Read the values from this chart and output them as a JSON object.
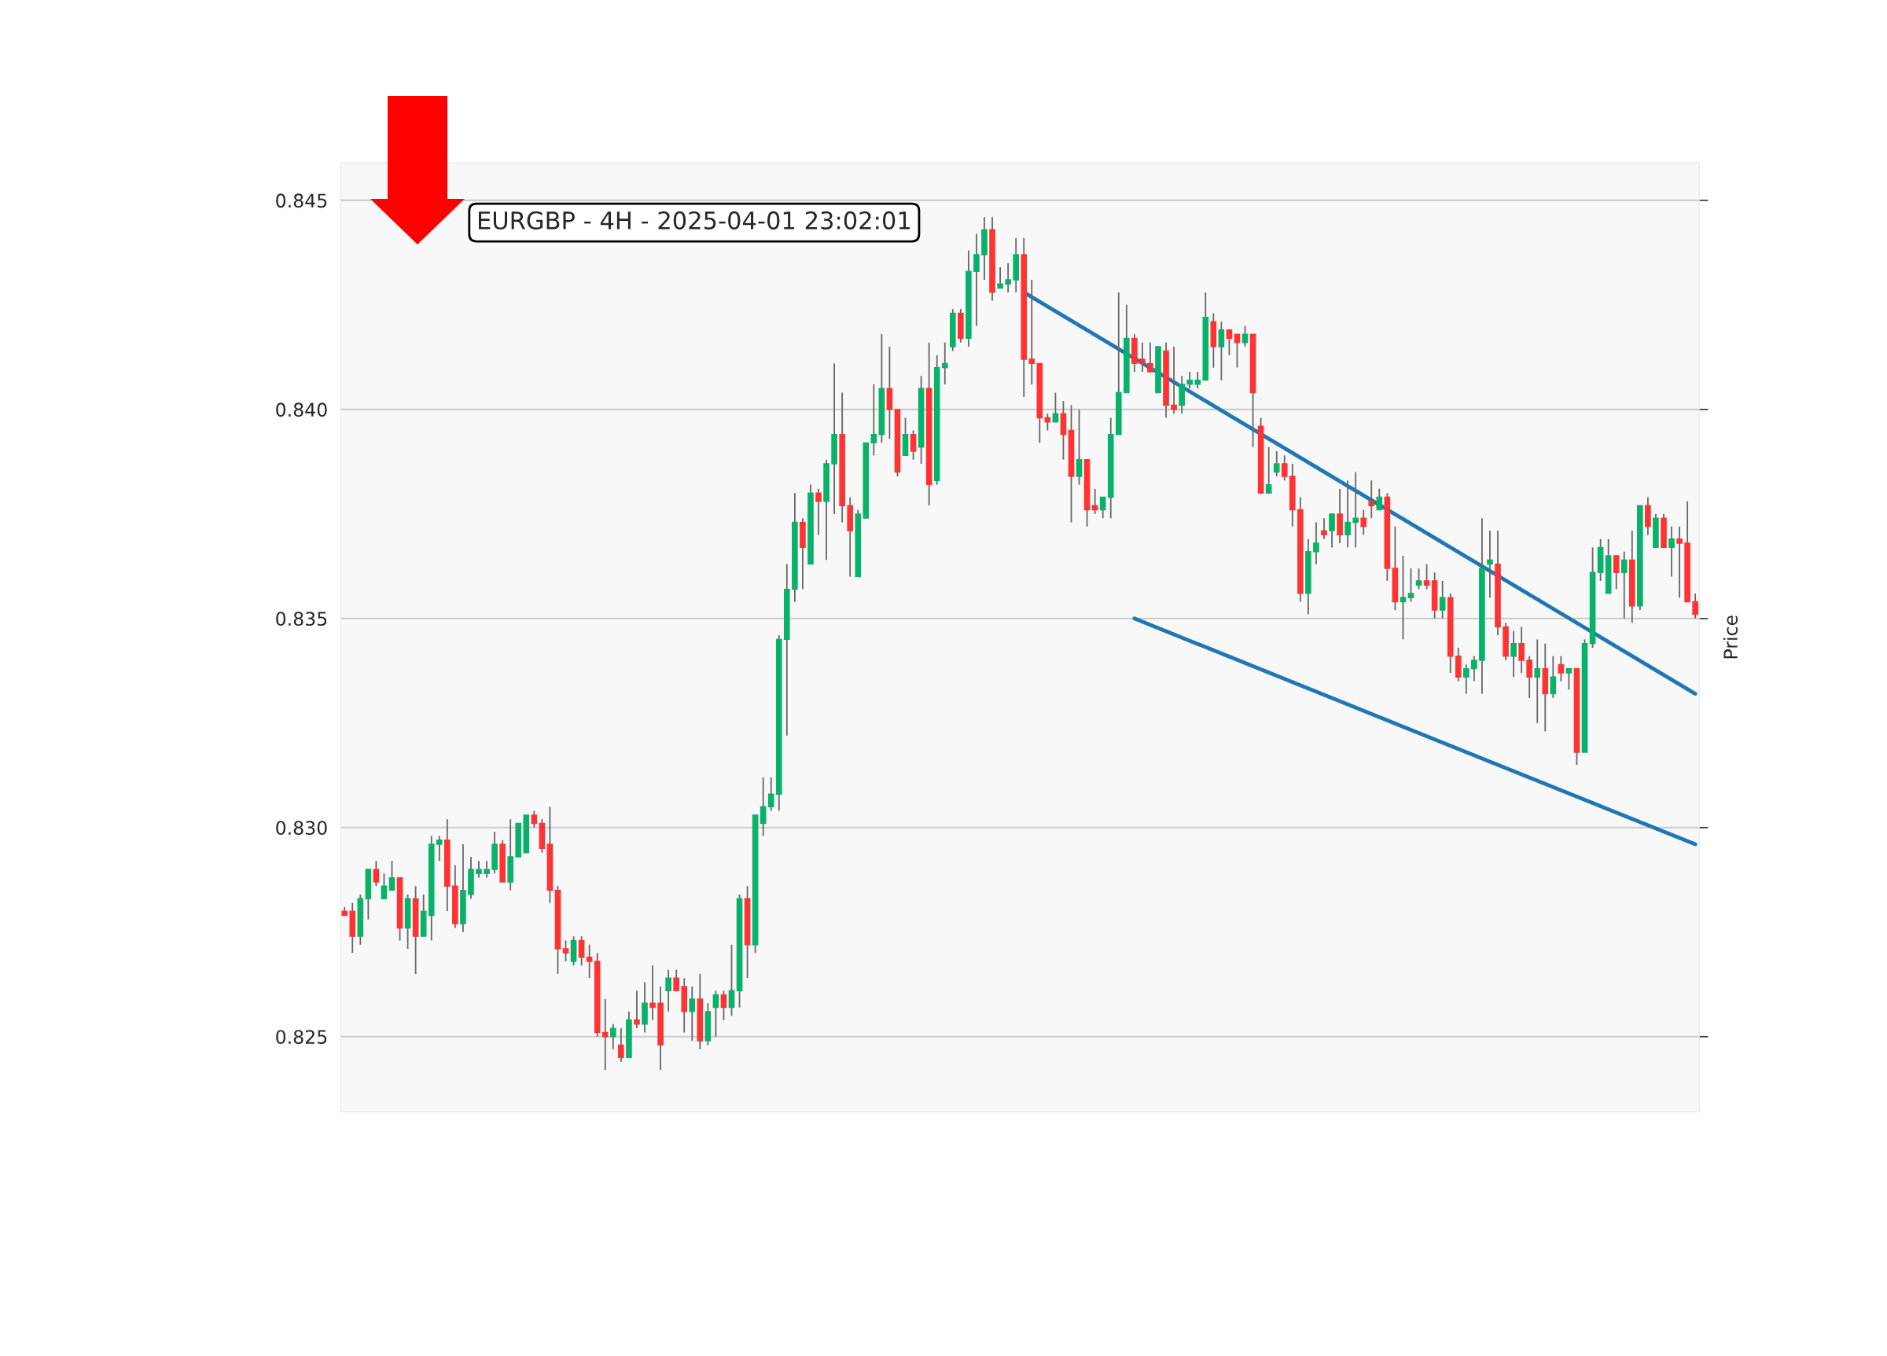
{
  "chart_data": {
    "type": "candlestick",
    "title": "EURGBP - 4H - 2025-04-01 23:02:01",
    "ylabel": "Price",
    "categories": [
      null,
      null,
      null,
      null,
      null,
      null,
      null,
      null,
      null,
      null,
      null,
      null,
      null,
      null,
      null,
      null,
      null,
      null,
      null,
      null,
      null,
      null,
      null,
      null,
      null,
      null,
      null,
      null,
      null,
      null,
      null,
      null,
      null,
      null,
      null,
      null,
      null,
      null,
      null,
      null,
      null,
      null,
      null,
      null,
      null,
      null,
      null,
      null,
      null,
      null,
      null,
      null,
      null,
      null,
      null,
      null,
      null,
      null,
      null,
      null,
      null,
      null,
      null,
      null,
      null,
      null,
      null,
      null,
      null,
      null,
      null,
      null,
      null,
      null,
      null,
      null,
      null,
      null,
      null,
      null,
      null,
      null,
      null,
      null,
      null,
      null,
      null,
      null,
      null,
      null,
      null,
      null,
      null,
      null,
      null,
      null,
      null,
      null,
      null,
      null,
      null,
      null,
      null,
      null,
      null,
      null,
      null,
      null,
      null,
      null,
      null,
      null,
      null,
      null,
      null,
      null,
      null,
      null,
      null,
      null,
      null,
      null,
      null,
      null,
      null,
      null,
      null,
      null,
      null,
      null,
      null,
      null,
      null,
      null,
      null,
      null,
      null,
      null,
      null,
      null,
      null,
      null,
      null,
      null,
      null,
      null,
      null,
      null,
      null,
      null,
      null,
      null,
      null,
      null,
      null,
      null,
      null,
      null,
      null,
      null,
      null,
      null,
      null,
      null,
      null,
      null,
      null,
      null,
      null,
      null,
      null,
      null
    ],
    "ohlc": [
      [
        0.828,
        0.8281,
        0.8279,
        0.8279
      ],
      [
        0.828,
        0.8282,
        0.827,
        0.8274
      ],
      [
        0.8274,
        0.8284,
        0.8272,
        0.8283
      ],
      [
        0.8283,
        0.829,
        0.8278,
        0.829
      ],
      [
        0.829,
        0.8292,
        0.8286,
        0.8287
      ],
      [
        0.8283,
        0.8289,
        0.8283,
        0.8286
      ],
      [
        0.8285,
        0.8292,
        0.8285,
        0.8288
      ],
      [
        0.8288,
        0.8288,
        0.8273,
        0.8276
      ],
      [
        0.8276,
        0.8284,
        0.8271,
        0.8283
      ],
      [
        0.8283,
        0.8286,
        0.8265,
        0.8274
      ],
      [
        0.8274,
        0.8284,
        0.8274,
        0.828
      ],
      [
        0.8279,
        0.8298,
        0.8273,
        0.8296
      ],
      [
        0.8296,
        0.8298,
        0.8292,
        0.8297
      ],
      [
        0.8297,
        0.8302,
        0.828,
        0.8286
      ],
      [
        0.8286,
        0.8291,
        0.8276,
        0.8277
      ],
      [
        0.8277,
        0.8296,
        0.8275,
        0.8285
      ],
      [
        0.8284,
        0.8293,
        0.8283,
        0.829
      ],
      [
        0.8289,
        0.8292,
        0.8288,
        0.829
      ],
      [
        0.8289,
        0.8292,
        0.8288,
        0.829
      ],
      [
        0.829,
        0.8299,
        0.8289,
        0.8296
      ],
      [
        0.8296,
        0.8297,
        0.8287,
        0.8287
      ],
      [
        0.8287,
        0.8302,
        0.8285,
        0.8293
      ],
      [
        0.8293,
        0.8301,
        0.8293,
        0.8301
      ],
      [
        0.8294,
        0.8303,
        0.8294,
        0.8303
      ],
      [
        0.8303,
        0.8304,
        0.83,
        0.8301
      ],
      [
        0.8301,
        0.8302,
        0.8294,
        0.8295
      ],
      [
        0.8296,
        0.8305,
        0.8282,
        0.8285
      ],
      [
        0.8285,
        0.8286,
        0.8265,
        0.8271
      ],
      [
        0.8271,
        0.8273,
        0.8268,
        0.827
      ],
      [
        0.8268,
        0.8274,
        0.8267,
        0.8273
      ],
      [
        0.8273,
        0.8274,
        0.8267,
        0.8269
      ],
      [
        0.8269,
        0.8272,
        0.8264,
        0.8268
      ],
      [
        0.8268,
        0.827,
        0.825,
        0.8251
      ],
      [
        0.8251,
        0.8259,
        0.8242,
        0.825
      ],
      [
        0.825,
        0.8253,
        0.8247,
        0.8252
      ],
      [
        0.8248,
        0.8252,
        0.8244,
        0.8245
      ],
      [
        0.8245,
        0.8256,
        0.8245,
        0.8254
      ],
      [
        0.8254,
        0.8261,
        0.8252,
        0.8253
      ],
      [
        0.8253,
        0.8263,
        0.8251,
        0.8258
      ],
      [
        0.8258,
        0.8267,
        0.8254,
        0.8257
      ],
      [
        0.8258,
        0.8262,
        0.8242,
        0.8248
      ],
      [
        0.8261,
        0.8266,
        0.8256,
        0.8264
      ],
      [
        0.8264,
        0.8266,
        0.8261,
        0.8261
      ],
      [
        0.8262,
        0.8264,
        0.8251,
        0.8256
      ],
      [
        0.8256,
        0.8262,
        0.8249,
        0.8259
      ],
      [
        0.8259,
        0.8265,
        0.8247,
        0.8249
      ],
      [
        0.8249,
        0.8258,
        0.8248,
        0.8256
      ],
      [
        0.8257,
        0.8261,
        0.825,
        0.826
      ],
      [
        0.826,
        0.8261,
        0.8254,
        0.8257
      ],
      [
        0.8257,
        0.8272,
        0.8255,
        0.8261
      ],
      [
        0.8261,
        0.8284,
        0.8257,
        0.8283
      ],
      [
        0.8283,
        0.8286,
        0.8264,
        0.8272
      ],
      [
        0.8272,
        0.8303,
        0.827,
        0.8303
      ],
      [
        0.8301,
        0.8312,
        0.8298,
        0.8305
      ],
      [
        0.8305,
        0.8312,
        0.8304,
        0.8308
      ],
      [
        0.8308,
        0.8346,
        0.8304,
        0.8345
      ],
      [
        0.8345,
        0.8363,
        0.8322,
        0.8357
      ],
      [
        0.8357,
        0.838,
        0.8354,
        0.8373
      ],
      [
        0.8373,
        0.8374,
        0.8357,
        0.8367
      ],
      [
        0.8363,
        0.8382,
        0.8363,
        0.838
      ],
      [
        0.838,
        0.8381,
        0.837,
        0.8378
      ],
      [
        0.8378,
        0.8388,
        0.8364,
        0.8387
      ],
      [
        0.8387,
        0.8411,
        0.8375,
        0.8394
      ],
      [
        0.8394,
        0.8404,
        0.8373,
        0.8377
      ],
      [
        0.8377,
        0.8379,
        0.836,
        0.8371
      ],
      [
        0.836,
        0.8376,
        0.836,
        0.8375
      ],
      [
        0.8374,
        0.8392,
        0.8374,
        0.8392
      ],
      [
        0.8392,
        0.8406,
        0.8389,
        0.8394
      ],
      [
        0.8394,
        0.8418,
        0.8392,
        0.8405
      ],
      [
        0.8405,
        0.8415,
        0.8393,
        0.84
      ],
      [
        0.84,
        0.84,
        0.8384,
        0.8385
      ],
      [
        0.8389,
        0.8398,
        0.8389,
        0.8394
      ],
      [
        0.8394,
        0.8395,
        0.8388,
        0.839
      ],
      [
        0.8391,
        0.8408,
        0.8387,
        0.8405
      ],
      [
        0.8405,
        0.8416,
        0.8377,
        0.8382
      ],
      [
        0.8383,
        0.8413,
        0.8382,
        0.841
      ],
      [
        0.841,
        0.8416,
        0.8406,
        0.8411
      ],
      [
        0.8415,
        0.8424,
        0.8414,
        0.8423
      ],
      [
        0.8423,
        0.8424,
        0.8416,
        0.8417
      ],
      [
        0.8417,
        0.8438,
        0.8415,
        0.8433
      ],
      [
        0.8433,
        0.8442,
        0.842,
        0.8437
      ],
      [
        0.8437,
        0.8446,
        0.8431,
        0.8443
      ],
      [
        0.8443,
        0.8446,
        0.8426,
        0.8428
      ],
      [
        0.8429,
        0.8434,
        0.8429,
        0.843
      ],
      [
        0.843,
        0.8435,
        0.8428,
        0.8431
      ],
      [
        0.8431,
        0.8441,
        0.8428,
        0.8437
      ],
      [
        0.8437,
        0.8441,
        0.8403,
        0.8412
      ],
      [
        0.8412,
        0.8431,
        0.8406,
        0.8411
      ],
      [
        0.8411,
        0.8411,
        0.8392,
        0.8398
      ],
      [
        0.8398,
        0.8399,
        0.8395,
        0.8397
      ],
      [
        0.8397,
        0.8404,
        0.8397,
        0.8399
      ],
      [
        0.8399,
        0.8402,
        0.8388,
        0.8394
      ],
      [
        0.8395,
        0.8401,
        0.8373,
        0.8384
      ],
      [
        0.8384,
        0.84,
        0.8382,
        0.8388
      ],
      [
        0.8388,
        0.8388,
        0.8372,
        0.8376
      ],
      [
        0.8377,
        0.8381,
        0.8375,
        0.8376
      ],
      [
        0.8376,
        0.8379,
        0.8374,
        0.8379
      ],
      [
        0.8379,
        0.8398,
        0.8374,
        0.8394
      ],
      [
        0.8394,
        0.8428,
        0.8394,
        0.8404
      ],
      [
        0.8404,
        0.8425,
        0.8404,
        0.8417
      ],
      [
        0.8417,
        0.8418,
        0.8409,
        0.8411
      ],
      [
        0.8412,
        0.8416,
        0.8409,
        0.8411
      ],
      [
        0.8411,
        0.8416,
        0.8409,
        0.8409
      ],
      [
        0.8404,
        0.8415,
        0.8404,
        0.8415
      ],
      [
        0.8414,
        0.8416,
        0.8398,
        0.8401
      ],
      [
        0.8401,
        0.8415,
        0.8399,
        0.84
      ],
      [
        0.8401,
        0.8408,
        0.8399,
        0.8406
      ],
      [
        0.8406,
        0.8409,
        0.8405,
        0.8407
      ],
      [
        0.8406,
        0.8409,
        0.8405,
        0.8407
      ],
      [
        0.8407,
        0.8428,
        0.8407,
        0.8422
      ],
      [
        0.8421,
        0.8423,
        0.841,
        0.8415
      ],
      [
        0.8415,
        0.8421,
        0.8407,
        0.8419
      ],
      [
        0.8419,
        0.8419,
        0.8413,
        0.8417
      ],
      [
        0.8418,
        0.8418,
        0.841,
        0.8416
      ],
      [
        0.8416,
        0.842,
        0.8415,
        0.8418
      ],
      [
        0.8418,
        0.8418,
        0.8391,
        0.8404
      ],
      [
        0.8396,
        0.8398,
        0.838,
        0.838
      ],
      [
        0.838,
        0.8391,
        0.838,
        0.8382
      ],
      [
        0.8385,
        0.839,
        0.8384,
        0.8387
      ],
      [
        0.8387,
        0.8389,
        0.8383,
        0.8384
      ],
      [
        0.8384,
        0.8387,
        0.8372,
        0.8376
      ],
      [
        0.8376,
        0.8379,
        0.8354,
        0.8356
      ],
      [
        0.8356,
        0.8369,
        0.8351,
        0.8366
      ],
      [
        0.8366,
        0.8373,
        0.8363,
        0.8368
      ],
      [
        0.8371,
        0.8374,
        0.8369,
        0.837
      ],
      [
        0.8371,
        0.8375,
        0.8367,
        0.8375
      ],
      [
        0.8375,
        0.8381,
        0.8368,
        0.837
      ],
      [
        0.837,
        0.8383,
        0.8367,
        0.8373
      ],
      [
        0.8373,
        0.8385,
        0.8367,
        0.8374
      ],
      [
        0.8374,
        0.8376,
        0.837,
        0.8372
      ],
      [
        0.8378,
        0.8383,
        0.8374,
        0.8377
      ],
      [
        0.8376,
        0.8381,
        0.8376,
        0.8379
      ],
      [
        0.8379,
        0.838,
        0.8359,
        0.8362
      ],
      [
        0.8362,
        0.8372,
        0.8352,
        0.8354
      ],
      [
        0.8354,
        0.8365,
        0.8345,
        0.8355
      ],
      [
        0.8355,
        0.8362,
        0.8354,
        0.8356
      ],
      [
        0.8358,
        0.8362,
        0.8357,
        0.8359
      ],
      [
        0.8359,
        0.8363,
        0.8357,
        0.8358
      ],
      [
        0.8359,
        0.8361,
        0.835,
        0.8352
      ],
      [
        0.8352,
        0.8359,
        0.835,
        0.8355
      ],
      [
        0.8355,
        0.8356,
        0.8337,
        0.8341
      ],
      [
        0.8341,
        0.8343,
        0.8335,
        0.8336
      ],
      [
        0.8336,
        0.8339,
        0.8332,
        0.8338
      ],
      [
        0.8338,
        0.8341,
        0.8335,
        0.834
      ],
      [
        0.834,
        0.8374,
        0.8332,
        0.8362
      ],
      [
        0.8363,
        0.8371,
        0.8355,
        0.8364
      ],
      [
        0.8363,
        0.8371,
        0.8346,
        0.8348
      ],
      [
        0.8348,
        0.8349,
        0.834,
        0.8341
      ],
      [
        0.8341,
        0.8347,
        0.8336,
        0.8344
      ],
      [
        0.8344,
        0.8348,
        0.8337,
        0.834
      ],
      [
        0.834,
        0.8341,
        0.8331,
        0.8336
      ],
      [
        0.8336,
        0.8345,
        0.8325,
        0.8338
      ],
      [
        0.8338,
        0.8344,
        0.8323,
        0.8332
      ],
      [
        0.8332,
        0.8341,
        0.8331,
        0.8336
      ],
      [
        0.8339,
        0.8341,
        0.8335,
        0.8337
      ],
      [
        0.8337,
        0.8338,
        0.8333,
        0.8338
      ],
      [
        0.8338,
        0.8338,
        0.8315,
        0.8318
      ],
      [
        0.8318,
        0.8345,
        0.8318,
        0.8344
      ],
      [
        0.8344,
        0.8367,
        0.8343,
        0.8361
      ],
      [
        0.8361,
        0.8369,
        0.8359,
        0.8367
      ],
      [
        0.8356,
        0.8369,
        0.8356,
        0.8365
      ],
      [
        0.8365,
        0.8365,
        0.8357,
        0.8361
      ],
      [
        0.8361,
        0.8366,
        0.835,
        0.8364
      ],
      [
        0.8364,
        0.8371,
        0.8349,
        0.8353
      ],
      [
        0.8353,
        0.8377,
        0.8352,
        0.8377
      ],
      [
        0.8377,
        0.8379,
        0.837,
        0.8372
      ],
      [
        0.8367,
        0.8375,
        0.8367,
        0.8374
      ],
      [
        0.8374,
        0.8375,
        0.8367,
        0.8367
      ],
      [
        0.8367,
        0.8372,
        0.836,
        0.8369
      ],
      [
        0.8369,
        0.8372,
        0.8355,
        0.8368
      ],
      [
        0.8368,
        0.8378,
        0.8354,
        0.8354
      ],
      [
        0.8354,
        0.8356,
        0.835,
        0.8351
      ]
    ],
    "series": [
      {
        "type": "line",
        "color": "#1f77b4",
        "values": [
          null,
          null,
          null,
          null,
          null,
          null,
          null,
          null,
          null,
          null,
          null,
          null,
          null,
          null,
          null,
          null,
          null,
          null,
          null,
          null,
          null,
          null,
          null,
          null,
          null,
          null,
          null,
          null,
          null,
          null,
          null,
          null,
          null,
          null,
          null,
          null,
          null,
          null,
          null,
          null,
          null,
          null,
          null,
          null,
          null,
          null,
          null,
          null,
          null,
          null,
          null,
          null,
          null,
          null,
          null,
          null,
          null,
          null,
          null,
          null,
          null,
          null,
          null,
          null,
          null,
          null,
          null,
          null,
          null,
          null,
          null,
          null,
          null,
          null,
          null,
          null,
          null,
          null,
          null,
          null,
          null,
          null,
          null,
          null,
          null,
          null,
          0.8428,
          null,
          null,
          null,
          null,
          null,
          null,
          null,
          null,
          null,
          null,
          null,
          null,
          null,
          null,
          null,
          null,
          null,
          null,
          null,
          null,
          null,
          null,
          null,
          null,
          null,
          null,
          null,
          null,
          null,
          null,
          null,
          null,
          null,
          null,
          null,
          null,
          null,
          null,
          null,
          null,
          null,
          null,
          null,
          null,
          null,
          null,
          null,
          null,
          null,
          null,
          null,
          null,
          null,
          null,
          null,
          null,
          null,
          null,
          null,
          null,
          null,
          null,
          null,
          null,
          null,
          null,
          null,
          null,
          null,
          null,
          null,
          null,
          null,
          null,
          null,
          null,
          null,
          null,
          null,
          null,
          null,
          null,
          null,
          null,
          0.8332
        ]
      },
      {
        "type": "line",
        "color": "#1f77b4",
        "values": [
          null,
          null,
          null,
          null,
          null,
          null,
          null,
          null,
          null,
          null,
          null,
          null,
          null,
          null,
          null,
          null,
          null,
          null,
          null,
          null,
          null,
          null,
          null,
          null,
          null,
          null,
          null,
          null,
          null,
          null,
          null,
          null,
          null,
          null,
          null,
          null,
          null,
          null,
          null,
          null,
          null,
          null,
          null,
          null,
          null,
          null,
          null,
          null,
          null,
          null,
          null,
          null,
          null,
          null,
          null,
          null,
          null,
          null,
          null,
          null,
          null,
          null,
          null,
          null,
          null,
          null,
          null,
          null,
          null,
          null,
          null,
          null,
          null,
          null,
          null,
          null,
          null,
          null,
          null,
          null,
          null,
          null,
          null,
          null,
          null,
          null,
          null,
          null,
          null,
          null,
          null,
          null,
          null,
          null,
          null,
          null,
          null,
          null,
          null,
          null,
          0.835,
          null,
          null,
          null,
          null,
          null,
          null,
          null,
          null,
          null,
          null,
          null,
          null,
          null,
          null,
          null,
          null,
          null,
          null,
          null,
          null,
          null,
          null,
          null,
          null,
          null,
          null,
          null,
          null,
          null,
          null,
          null,
          null,
          null,
          null,
          null,
          null,
          null,
          null,
          null,
          null,
          null,
          null,
          null,
          null,
          null,
          null,
          null,
          null,
          null,
          null,
          null,
          null,
          null,
          null,
          null,
          null,
          null,
          null,
          null,
          null,
          null,
          null,
          null,
          null,
          null,
          null,
          null,
          null,
          null,
          null,
          0.8296
        ]
      }
    ],
    "ylim": [
      0.8232,
      0.8459
    ],
    "yticks": [
      0.825,
      {
        "value": 0.83,
        "label": "0.830"
      },
      0.835,
      {
        "value": 0.84,
        "label": "0.840"
      },
      0.845
    ],
    "grid": "y",
    "tick_labels": "y"
  }
}
